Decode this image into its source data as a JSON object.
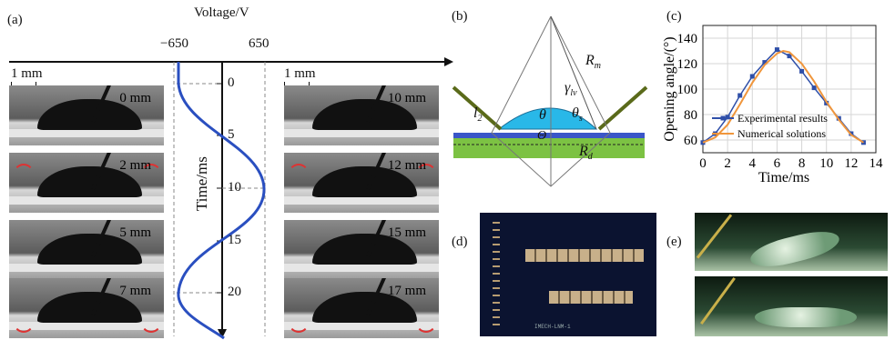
{
  "panel_a": {
    "label": "(a)",
    "axis_title": "Voltage/V",
    "volt_min": "−650",
    "volt_max": "650",
    "time_label": "Time/ms",
    "time_ticks": [
      "0",
      "5",
      "10",
      "15",
      "20"
    ],
    "scale_bar": "1 mm",
    "left_frames": [
      "0 mm",
      "2 mm",
      "5 mm",
      "7 mm"
    ],
    "right_frames": [
      "10 mm",
      "12 mm",
      "15 mm",
      "17 mm"
    ]
  },
  "panel_b": {
    "label": "(b)",
    "r_m": "R",
    "r_m_sub": "m",
    "r_d": "R",
    "r_d_sub": "d",
    "gamma": "γ",
    "gamma_sub": "lv",
    "l2": "l",
    "l2_sub": "2",
    "theta": "θ",
    "theta_s": "θ",
    "theta_s_sub": "s",
    "theta_prime": "Θ"
  },
  "panel_c": {
    "label": "(c)"
  },
  "chart_data": {
    "type": "line",
    "xlabel": "Time/ms",
    "ylabel": "Opening angle/(°)",
    "xlim": [
      0,
      14
    ],
    "ylim": [
      50,
      150
    ],
    "x_ticks": [
      "0",
      "2",
      "4",
      "6",
      "8",
      "10",
      "12",
      "14"
    ],
    "y_ticks": [
      "60",
      "80",
      "100",
      "120",
      "140"
    ],
    "grid": true,
    "legend_position": "bottom-right",
    "series": [
      {
        "name": "Experimental results",
        "color": "#2f4fa8",
        "marker": "square",
        "x": [
          0,
          1,
          2,
          3,
          4,
          5,
          6,
          7,
          8,
          9,
          10,
          11,
          12,
          13
        ],
        "y": [
          58,
          65,
          78,
          95,
          110,
          121,
          131,
          126,
          114,
          101,
          89,
          77,
          65,
          58
        ]
      },
      {
        "name": "Numerical solutions",
        "color": "#f0963c",
        "marker": "none",
        "x": [
          0,
          1,
          2,
          3,
          4,
          5,
          6,
          6.5,
          7,
          8,
          9,
          10,
          11,
          12,
          13
        ],
        "y": [
          58,
          62,
          72,
          88,
          105,
          119,
          128,
          130,
          129,
          120,
          106,
          90,
          76,
          64,
          58
        ]
      }
    ]
  },
  "panel_d": {
    "label": "(d)",
    "chip_text": "IMECH-LNM-1"
  },
  "panel_e": {
    "label": "(e)"
  },
  "colors": {
    "sine_wave": "#2a4fc0",
    "dashed_guides": "#777777",
    "drop_blue": "#29b8e8",
    "substrate_green": "#7cc243",
    "substrate_blue": "#3a56c8"
  }
}
